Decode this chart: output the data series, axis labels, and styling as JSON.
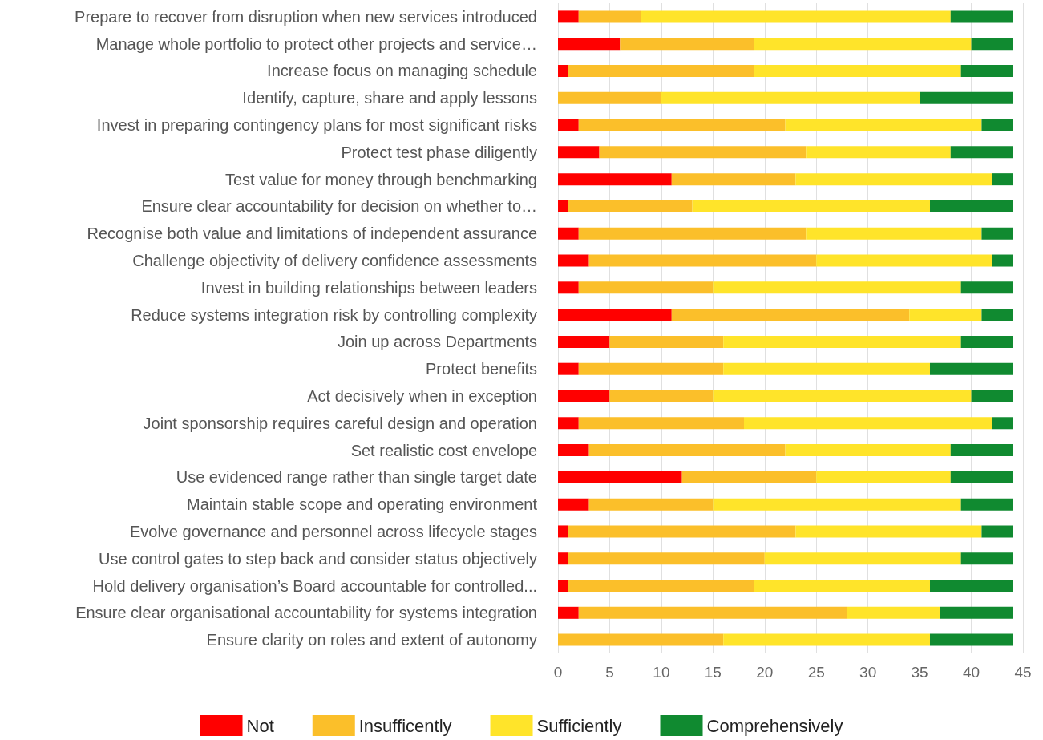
{
  "chart_data": {
    "type": "bar",
    "orientation": "horizontal",
    "stacked": true,
    "grid": "x",
    "legend": "bottom",
    "categories": [
      "Prepare to recover from disruption when new services introduced",
      "Manage whole portfolio to protect other projects and service…",
      "Increase focus on managing schedule",
      "Identify, capture, share and apply lessons",
      "Invest in preparing contingency plans for most significant risks",
      "Protect test phase diligently",
      "Test value for money through benchmarking",
      "Ensure clear accountability for decision on whether to…",
      "Recognise both value and limitations of independent assurance",
      "Challenge objectivity of delivery confidence assessments",
      "Invest in building relationships between leaders",
      "Reduce systems integration risk by controlling complexity",
      "Join up across Departments",
      "Protect benefits",
      "Act decisively when in exception",
      "Joint sponsorship requires careful design and operation",
      "Set realistic cost envelope",
      "Use evidenced range rather than single target date",
      "Maintain stable scope and operating environment",
      "Evolve governance and personnel across lifecycle stages",
      "Use control gates to step back and consider status objectively",
      "Hold delivery organisation’s Board accountable for controlled...",
      "Ensure clear organisational accountability for systems integration",
      "Ensure clarity on roles and extent of autonomy"
    ],
    "xlim": [
      0,
      45
    ],
    "xticks": [
      0,
      5,
      10,
      15,
      20,
      25,
      30,
      35,
      40,
      45
    ],
    "series": [
      {
        "name": "Not",
        "color": "#ff0000",
        "values": [
          2,
          6,
          1,
          0,
          2,
          4,
          11,
          1,
          2,
          3,
          2,
          11,
          5,
          2,
          5,
          2,
          3,
          12,
          3,
          1,
          1,
          1,
          2,
          0
        ]
      },
      {
        "name": "Insufficently",
        "color": "#fbbf2a",
        "values": [
          6,
          13,
          18,
          10,
          20,
          20,
          12,
          12,
          22,
          22,
          13,
          23,
          11,
          14,
          10,
          16,
          19,
          13,
          12,
          22,
          19,
          18,
          26,
          16
        ]
      },
      {
        "name": "Sufficiently",
        "color": "#ffe42a",
        "values": [
          30,
          21,
          20,
          25,
          19,
          14,
          19,
          23,
          17,
          17,
          24,
          7,
          23,
          20,
          25,
          24,
          16,
          13,
          24,
          18,
          19,
          17,
          9,
          20
        ]
      },
      {
        "name": "Comprehensively",
        "color": "#108a30",
        "values": [
          6,
          4,
          5,
          9,
          3,
          6,
          2,
          8,
          3,
          2,
          5,
          3,
          5,
          8,
          4,
          2,
          6,
          6,
          5,
          3,
          5,
          8,
          7,
          8
        ]
      }
    ]
  }
}
